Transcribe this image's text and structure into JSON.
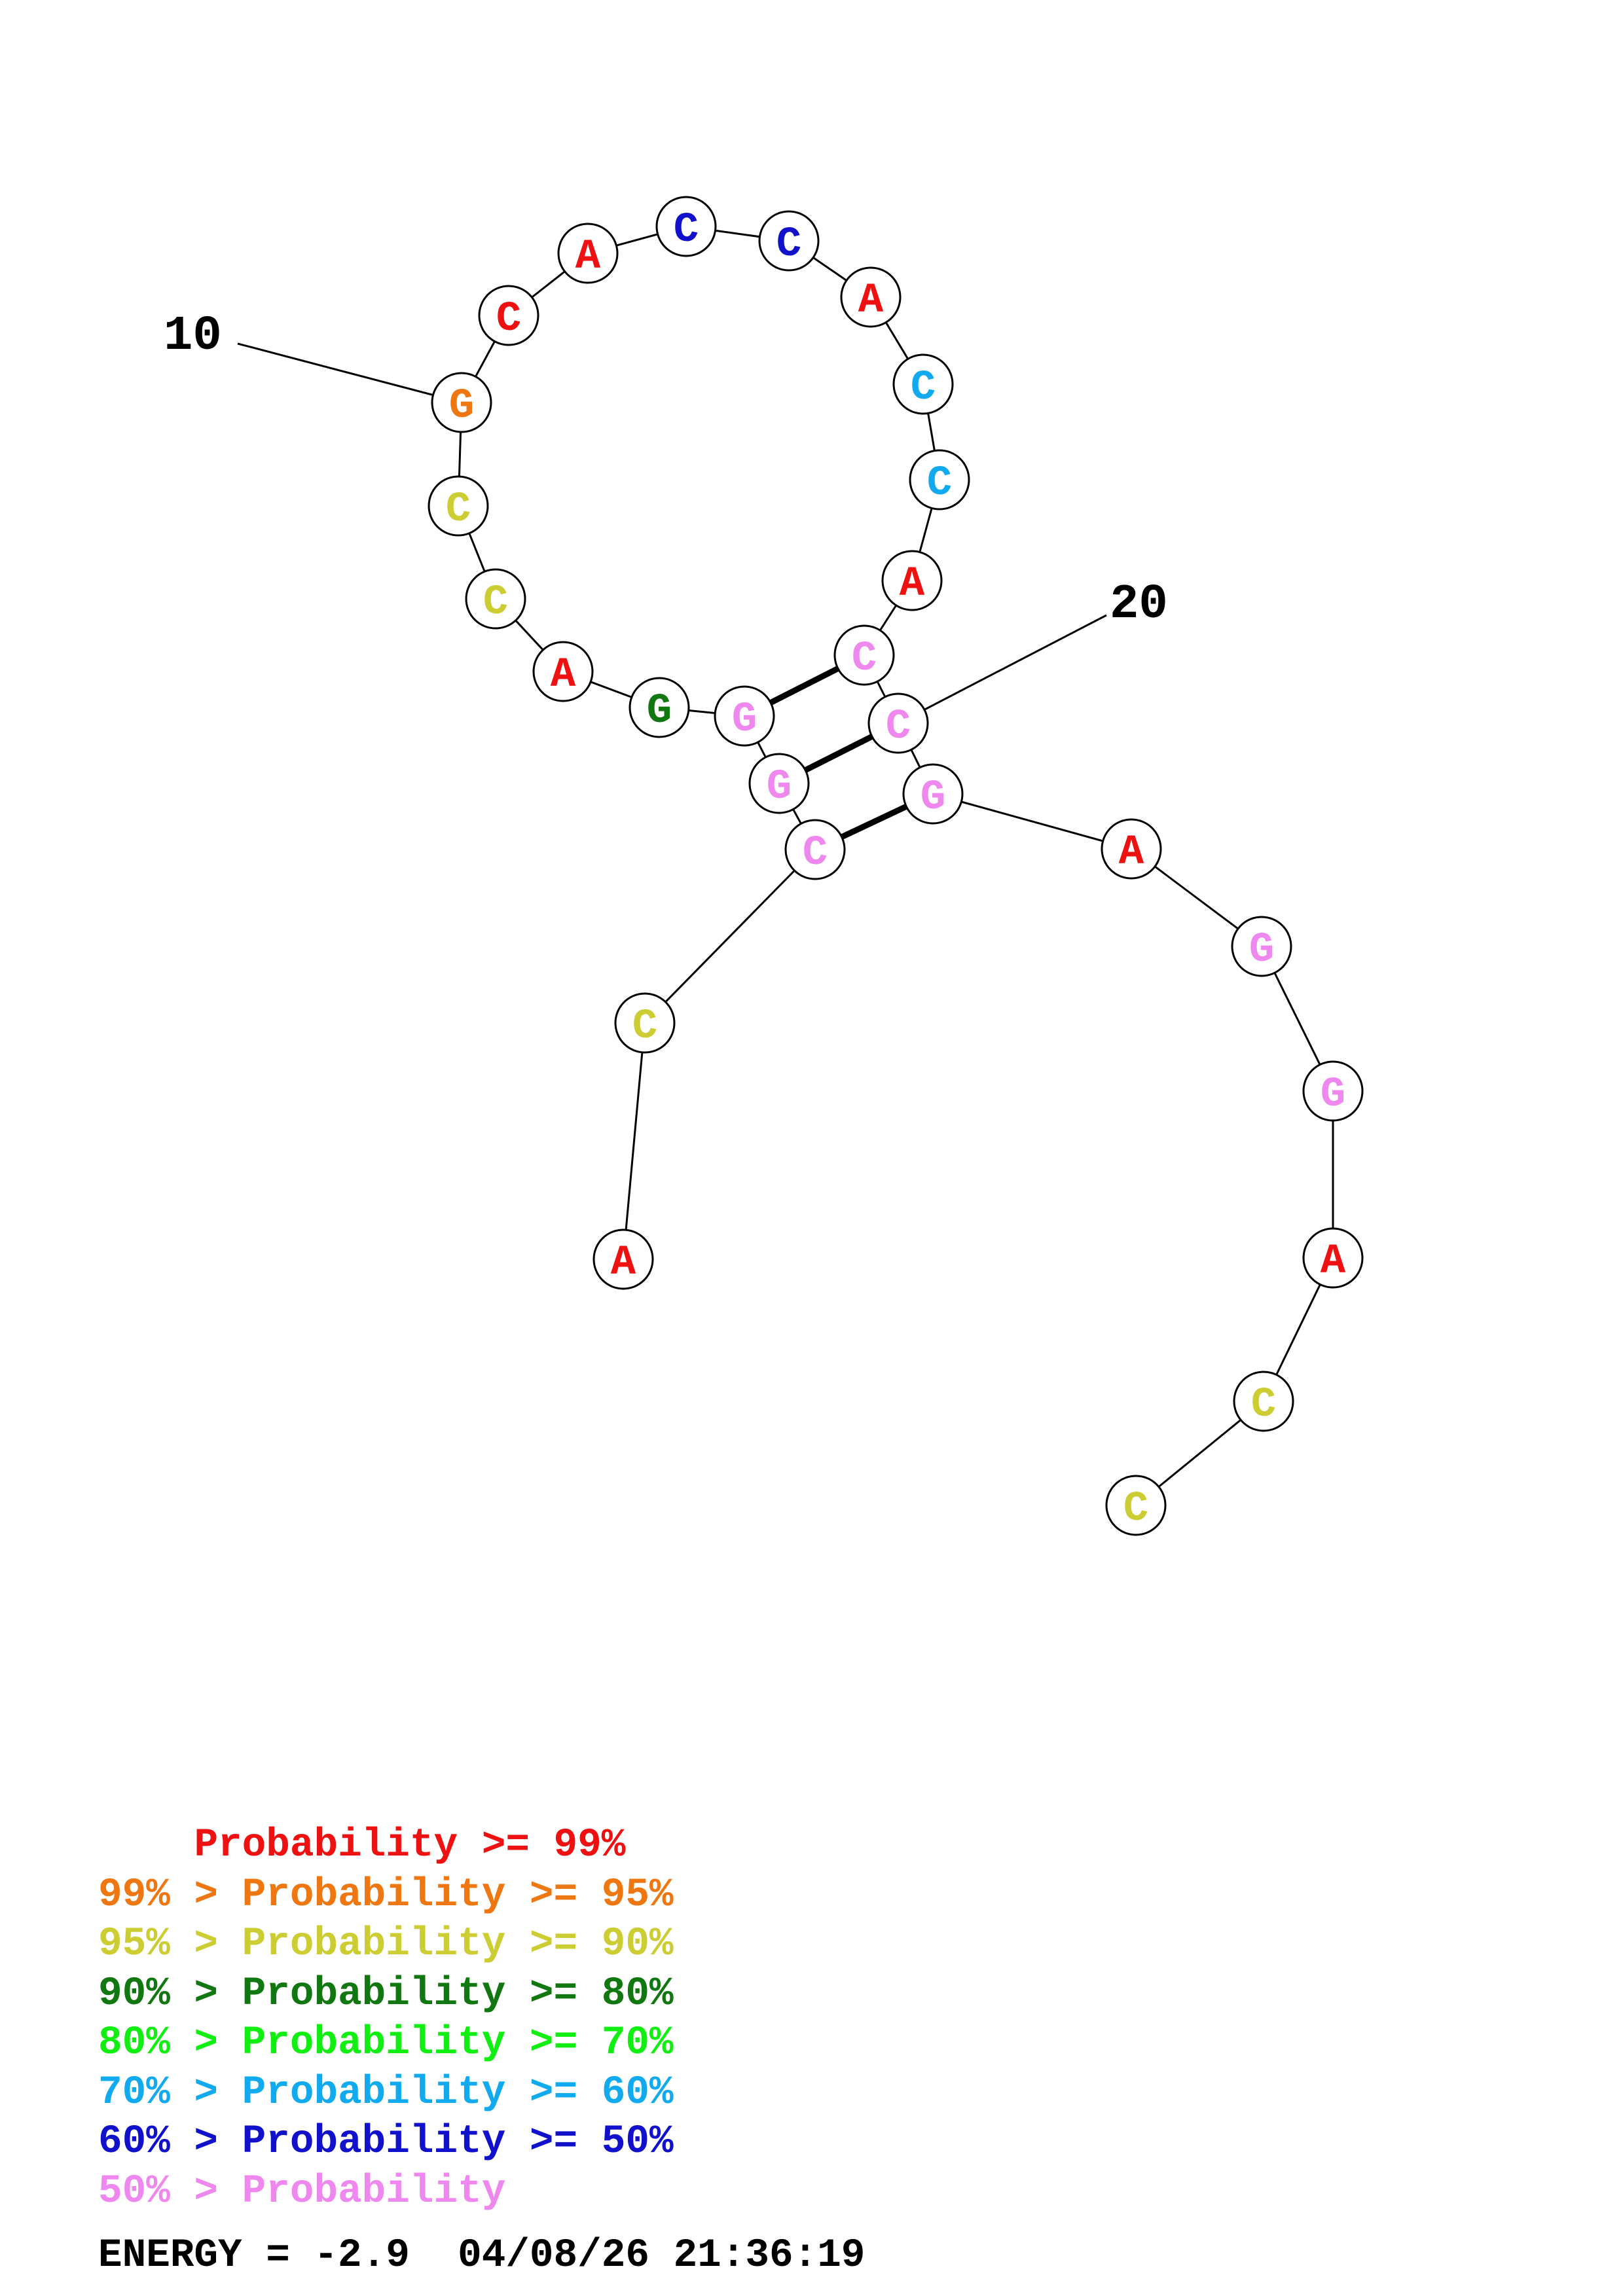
{
  "colors": {
    "p99": "#ee1111",
    "p95": "#ee7711",
    "p90": "#cccc33",
    "p80": "#117711",
    "p70": "#11ee11",
    "p60": "#11aaee",
    "p50": "#1111cc",
    "plow": "#ee88ee"
  },
  "nucleotides": [
    {
      "index": 1,
      "base": "A",
      "prob": "p99"
    },
    {
      "index": 2,
      "base": "C",
      "prob": "p90"
    },
    {
      "index": 3,
      "base": "C",
      "prob": "plow"
    },
    {
      "index": 4,
      "base": "G",
      "prob": "plow"
    },
    {
      "index": 5,
      "base": "G",
      "prob": "plow"
    },
    {
      "index": 6,
      "base": "G",
      "prob": "p80"
    },
    {
      "index": 7,
      "base": "A",
      "prob": "p99"
    },
    {
      "index": 8,
      "base": "C",
      "prob": "p90"
    },
    {
      "index": 9,
      "base": "C",
      "prob": "p90"
    },
    {
      "index": 10,
      "base": "G",
      "prob": "p95"
    },
    {
      "index": 11,
      "base": "C",
      "prob": "p99"
    },
    {
      "index": 12,
      "base": "A",
      "prob": "p99"
    },
    {
      "index": 13,
      "base": "C",
      "prob": "p50"
    },
    {
      "index": 14,
      "base": "C",
      "prob": "p50"
    },
    {
      "index": 15,
      "base": "A",
      "prob": "p99"
    },
    {
      "index": 16,
      "base": "C",
      "prob": "p60"
    },
    {
      "index": 17,
      "base": "C",
      "prob": "p60"
    },
    {
      "index": 18,
      "base": "A",
      "prob": "p99"
    },
    {
      "index": 19,
      "base": "C",
      "prob": "plow"
    },
    {
      "index": 20,
      "base": "C",
      "prob": "plow"
    },
    {
      "index": 21,
      "base": "G",
      "prob": "plow"
    },
    {
      "index": 22,
      "base": "A",
      "prob": "p99"
    },
    {
      "index": 23,
      "base": "G",
      "prob": "plow"
    },
    {
      "index": 24,
      "base": "G",
      "prob": "plow"
    },
    {
      "index": 25,
      "base": "A",
      "prob": "p99"
    },
    {
      "index": 26,
      "base": "C",
      "prob": "p90"
    },
    {
      "index": 27,
      "base": "C",
      "prob": "p90"
    }
  ],
  "pairs": [
    [
      3,
      21
    ],
    [
      4,
      20
    ],
    [
      5,
      19
    ]
  ],
  "index_labels": [
    {
      "text": "10",
      "nucleotide": 10
    },
    {
      "text": "20",
      "nucleotide": 20
    }
  ],
  "legend": [
    {
      "prefix": "    ",
      "text": "Probability >= 99%",
      "color_key": "p99"
    },
    {
      "prefix": "99% > ",
      "text": "Probability >= 95%",
      "color_key": "p95"
    },
    {
      "prefix": "95% > ",
      "text": "Probability >= 90%",
      "color_key": "p90"
    },
    {
      "prefix": "90% > ",
      "text": "Probability >= 80%",
      "color_key": "p80"
    },
    {
      "prefix": "80% > ",
      "text": "Probability >= 70%",
      "color_key": "p70"
    },
    {
      "prefix": "70% > ",
      "text": "Probability >= 60%",
      "color_key": "p60"
    },
    {
      "prefix": "60% > ",
      "text": "Probability >= 50%",
      "color_key": "p50"
    },
    {
      "prefix": "50% > ",
      "text": "Probability",
      "color_key": "plow"
    }
  ],
  "footer": {
    "energy": "ENERGY = -2.9",
    "timestamp": "04/08/26 21:36:19"
  }
}
